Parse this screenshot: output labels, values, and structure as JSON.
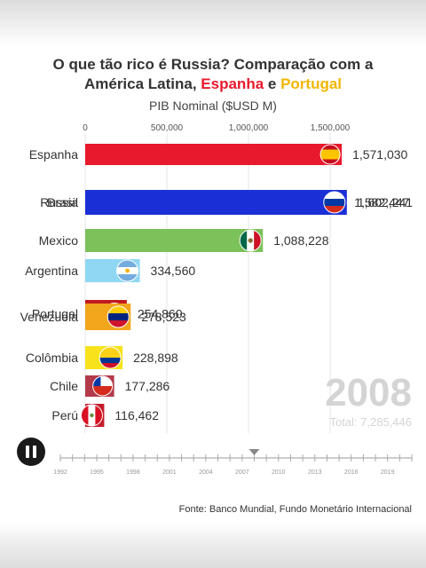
{
  "title_parts": {
    "line1": "O que tão rico é Russia? Comparação com a",
    "line2_pre": "América Latina, ",
    "line2_es": "Espanha",
    "line2_mid": " e ",
    "line2_pt": "Portugal"
  },
  "subtitle": "PIB Nominal ($USD M)",
  "year_label": "2008",
  "total_label": "Total: 7,285,446",
  "source": "Fonte: Banco Mundial, Fundo Monetário Internacional",
  "controls": {
    "pause_icon": "pause-icon"
  },
  "colors": {
    "espanha_highlight": "#e8192c",
    "portugal_highlight": "#f2b600",
    "watermark": "#d4d4d4"
  },
  "chart_data": {
    "type": "bar",
    "orientation": "horizontal",
    "x_ticks": [
      0,
      500000,
      1000000,
      1500000
    ],
    "x_tick_labels": [
      "0",
      "500,000",
      "1,000,000",
      "1,500,000"
    ],
    "xlim": [
      0,
      1600000
    ],
    "bars": [
      {
        "country": "Espanha",
        "value": 1571030,
        "value_label": "1,571,030",
        "color": "#e8192c",
        "flag": "spain-flag-icon"
      },
      {
        "country": "Brasil",
        "value": 1582447,
        "value_label": "1,582,447",
        "color": "#1e9e3a",
        "flag": "brazil-flag-icon"
      },
      {
        "country": "Russia",
        "value": 1602241,
        "value_label": "1,602,241",
        "color": "#1a2fd6",
        "flag": "russia-flag-icon"
      },
      {
        "country": "Mexico",
        "value": 1088228,
        "value_label": "1,088,228",
        "color": "#7cc15a",
        "flag": "mexico-flag-icon"
      },
      {
        "country": "Argentina",
        "value": 334560,
        "value_label": "334,560",
        "color": "#8fd7f3",
        "flag": "argentina-flag-icon"
      },
      {
        "country": "Portugal",
        "value": 254860,
        "value_label": "254,860",
        "color": "#c2191f",
        "flag": "portugal-flag-icon"
      },
      {
        "country": "Venezuela",
        "value": 278523,
        "value_label": "278,523",
        "color": "#f1a61c",
        "flag": "venezuela-flag-icon"
      },
      {
        "country": "Colômbia",
        "value": 228898,
        "value_label": "228,898",
        "color": "#f7e21b",
        "flag": "colombia-flag-icon"
      },
      {
        "country": "Chile",
        "value": 177286,
        "value_label": "177,286",
        "color": "#b23a4a",
        "flag": "chile-flag-icon"
      },
      {
        "country": "Perú",
        "value": 116462,
        "value_label": "116,462",
        "color": "#c51d2c",
        "flag": "peru-flag-icon"
      }
    ],
    "timeline": {
      "years": [
        "1992",
        "1995",
        "1998",
        "2001",
        "2004",
        "2007",
        "2010",
        "2013",
        "2016",
        "2019"
      ],
      "current": 2008,
      "range": [
        1992,
        2021
      ]
    }
  }
}
